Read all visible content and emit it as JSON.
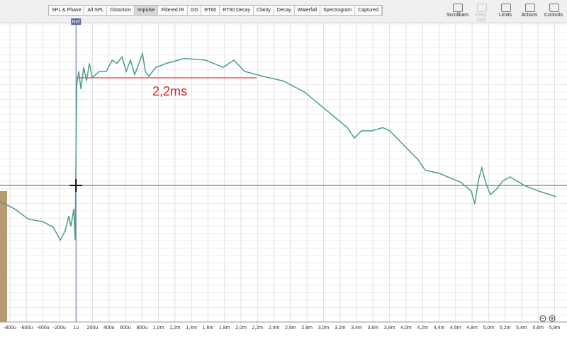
{
  "tabs": [
    "SPL & Phase",
    "All SPL",
    "Distortion",
    "Impulse",
    "Filtered IR",
    "GD",
    "RT60",
    "RT60 Decay",
    "Clarity",
    "Decay",
    "Waterfall",
    "Spectrogram",
    "Captured"
  ],
  "active_tab": "Impulse",
  "toolbar": [
    "Scrollbars",
    "Freq. Axis",
    "Limits",
    "Actions",
    "Controls"
  ],
  "chart_data": {
    "type": "line",
    "annotation": "2,2ms",
    "marker": "Ref",
    "x": [
      -0.918,
      -0.747,
      -0.575,
      -0.403,
      -0.275,
      -0.189,
      -0.129,
      -0.086,
      -0.06,
      -0.026,
      -0.009,
      0.009,
      0.034,
      0.06,
      0.094,
      0.129,
      0.163,
      0.197,
      0.283,
      0.369,
      0.438,
      0.498,
      0.558,
      0.609,
      0.661,
      0.712,
      0.764,
      0.807,
      0.841,
      0.884,
      0.97,
      1.099,
      1.313,
      1.571,
      1.785,
      1.914,
      2.043,
      2.258,
      2.515,
      2.773,
      3.03,
      3.288,
      3.373,
      3.459,
      3.588,
      3.717,
      3.803,
      3.974,
      4.146,
      4.232,
      4.403,
      4.661,
      4.79,
      4.833,
      4.876,
      4.918,
      4.97,
      5.021,
      5.09,
      5.176,
      5.262,
      5.433,
      5.605,
      5.82
    ],
    "series": [
      {
        "color": "#4a9e8e",
        "values": [
          -10,
          -14.5,
          -21,
          -22.5,
          -26,
          -34,
          -28,
          -19,
          -25.5,
          -14.5,
          -34,
          62.5,
          71,
          60,
          73.5,
          65,
          76,
          67,
          71,
          71,
          78,
          76,
          80,
          71,
          78,
          69,
          76,
          82,
          71,
          68,
          73.5,
          76,
          79,
          78,
          73.5,
          78,
          71,
          68,
          65,
          58,
          47,
          36,
          29.5,
          34,
          34,
          36,
          34,
          25,
          16,
          9.5,
          7.5,
          2,
          -3.5,
          -11.5,
          3,
          11,
          1,
          -5.7,
          -2.6,
          3,
          5.3,
          0,
          -3.5,
          -7
        ]
      }
    ],
    "xlim": [
      -0.92,
      5.95
    ],
    "ylim": [
      -85,
      100
    ],
    "xticks": [
      {
        "value": -0.8,
        "label": "-800u"
      },
      {
        "value": -0.6,
        "label": "-600u"
      },
      {
        "value": -0.4,
        "label": "-400u"
      },
      {
        "value": -0.2,
        "label": "-200u"
      },
      {
        "value": 0.001,
        "label": "1u"
      },
      {
        "value": 0.2,
        "label": "200u"
      },
      {
        "value": 0.4,
        "label": "400u"
      },
      {
        "value": 0.6,
        "label": "600u"
      },
      {
        "value": 0.8,
        "label": "800u"
      },
      {
        "value": 1.0,
        "label": "1,0m"
      },
      {
        "value": 1.2,
        "label": "1,2m"
      },
      {
        "value": 1.4,
        "label": "1,4m"
      },
      {
        "value": 1.6,
        "label": "1,6m"
      },
      {
        "value": 1.8,
        "label": "1,8m"
      },
      {
        "value": 2.0,
        "label": "2,0m"
      },
      {
        "value": 2.2,
        "label": "2,2m"
      },
      {
        "value": 2.4,
        "label": "2,4m"
      },
      {
        "value": 2.6,
        "label": "2,6m"
      },
      {
        "value": 2.8,
        "label": "2,8m"
      },
      {
        "value": 3.0,
        "label": "3,0m"
      },
      {
        "value": 3.2,
        "label": "3,2m"
      },
      {
        "value": 3.4,
        "label": "3,4m"
      },
      {
        "value": 3.6,
        "label": "3,6m"
      },
      {
        "value": 3.8,
        "label": "3,8m"
      },
      {
        "value": 4.0,
        "label": "4,0m"
      },
      {
        "value": 4.2,
        "label": "4,2m"
      },
      {
        "value": 4.4,
        "label": "4,4m"
      },
      {
        "value": 4.6,
        "label": "4,6m"
      },
      {
        "value": 4.8,
        "label": "4,8m"
      },
      {
        "value": 5.0,
        "label": "5,0m"
      },
      {
        "value": 5.2,
        "label": "5,2m"
      },
      {
        "value": 5.4,
        "label": "5,4m"
      },
      {
        "value": 5.6,
        "label": "5,6m"
      },
      {
        "value": 5.8,
        "label": "5,8m"
      }
    ],
    "grid": true
  }
}
